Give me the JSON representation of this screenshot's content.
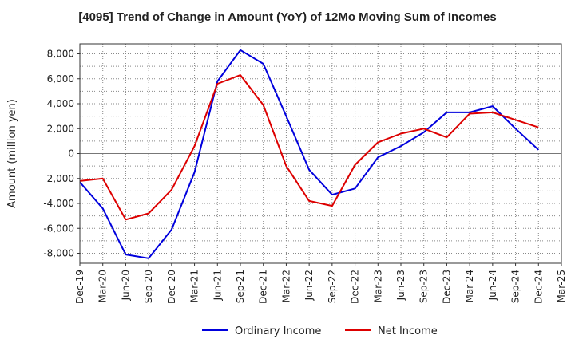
{
  "chart_data": {
    "type": "line",
    "title": "[4095]  Trend of Change in Amount (YoY) of 12Mo Moving Sum of Incomes",
    "xlabel": "",
    "ylabel": "Amount (million yen)",
    "ylim": [
      -8800,
      8800
    ],
    "yticks": [
      -8000,
      -6000,
      -4000,
      -2000,
      0,
      2000,
      4000,
      6000,
      8000
    ],
    "ytick_labels": [
      "-8,000",
      "-6,000",
      "-4,000",
      "-2,000",
      "0",
      "2,000",
      "4,000",
      "6,000",
      "8,000"
    ],
    "categories": [
      "Dec-19",
      "Mar-20",
      "Jun-20",
      "Sep-20",
      "Dec-20",
      "Mar-21",
      "Jun-21",
      "Sep-21",
      "Dec-21",
      "Mar-22",
      "Jun-22",
      "Sep-22",
      "Dec-22",
      "Mar-23",
      "Jun-23",
      "Sep-23",
      "Dec-23",
      "Mar-24",
      "Jun-24",
      "Sep-24",
      "Dec-24",
      "Mar-25"
    ],
    "grid": true,
    "legend_position": "bottom",
    "series": [
      {
        "name": "Ordinary Income",
        "color": "#0000dd",
        "values": [
          -2300,
          -4400,
          -8100,
          -8400,
          -6100,
          -1500,
          5800,
          8300,
          7200,
          3000,
          -1300,
          -3300,
          -2800,
          -300,
          600,
          1700,
          3300,
          3300,
          3800,
          2000,
          300,
          null
        ]
      },
      {
        "name": "Net Income",
        "color": "#dd0000",
        "values": [
          -2200,
          -2000,
          -5300,
          -4800,
          -2900,
          600,
          5600,
          6300,
          3900,
          -1000,
          -3800,
          -4200,
          -900,
          900,
          1600,
          2000,
          1300,
          3200,
          3300,
          2700,
          2100,
          null
        ]
      }
    ]
  }
}
